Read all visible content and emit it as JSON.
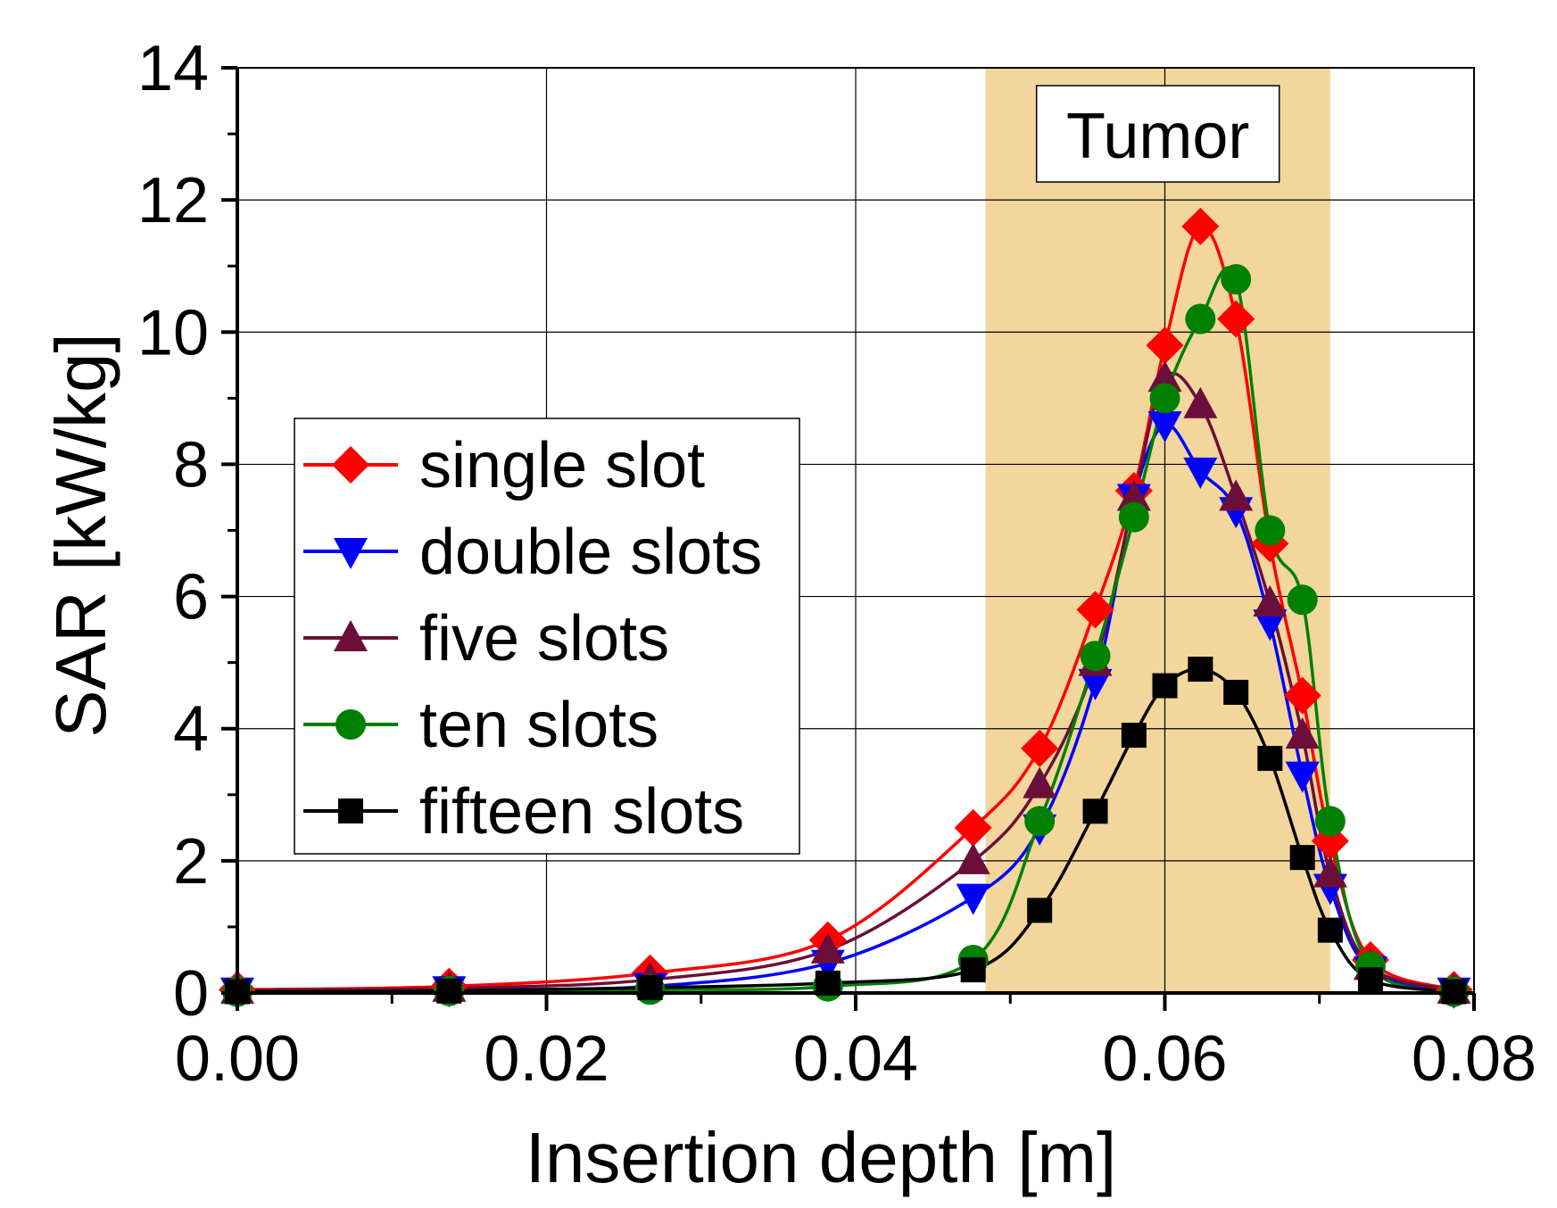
{
  "chart_data": {
    "type": "line",
    "title": "",
    "xlabel": "Insertion depth [m]",
    "ylabel": "SAR [kW/kg]",
    "xlim": [
      0,
      0.08
    ],
    "ylim": [
      0,
      14
    ],
    "xticks": [
      0.0,
      0.02,
      0.04,
      0.06,
      0.08
    ],
    "xtick_labels": [
      "0.00",
      "0.02",
      "0.04",
      "0.06",
      "0.08"
    ],
    "yticks": [
      0,
      2,
      4,
      6,
      8,
      10,
      12,
      14
    ],
    "ytick_labels": [
      "0",
      "2",
      "4",
      "6",
      "8",
      "10",
      "12",
      "14"
    ],
    "grid": true,
    "legend_position": "center-left",
    "annotation": {
      "label": "Tumor",
      "x_range": [
        0.0484,
        0.0707
      ],
      "color": "#f2d69c"
    },
    "series": [
      {
        "name": "single slot",
        "color": "#ff0000",
        "marker": "diamond",
        "x": [
          0.0,
          0.0137,
          0.0267,
          0.0382,
          0.0476,
          0.0519,
          0.0555,
          0.058,
          0.06,
          0.0623,
          0.0646,
          0.0668,
          0.0689,
          0.0707,
          0.0733,
          0.0787
        ],
        "y": [
          0.05,
          0.1,
          0.3,
          0.8,
          2.5,
          3.7,
          5.8,
          7.6,
          9.8,
          11.6,
          10.2,
          6.8,
          4.5,
          2.3,
          0.5,
          0.05
        ]
      },
      {
        "name": "double slots",
        "color": "#0000ff",
        "marker": "triangle-down",
        "x": [
          0.0,
          0.0137,
          0.0267,
          0.0382,
          0.0476,
          0.0519,
          0.0555,
          0.058,
          0.06,
          0.0623,
          0.0646,
          0.0668,
          0.0689,
          0.0707,
          0.0733,
          0.0787
        ],
        "y": [
          0.03,
          0.05,
          0.1,
          0.45,
          1.45,
          2.5,
          4.7,
          7.5,
          8.6,
          7.9,
          7.3,
          5.6,
          3.3,
          1.6,
          0.35,
          0.03
        ]
      },
      {
        "name": "five slots",
        "color": "#6b0f3a",
        "marker": "triangle-up",
        "x": [
          0.0,
          0.0137,
          0.0267,
          0.0382,
          0.0476,
          0.0519,
          0.0555,
          0.058,
          0.06,
          0.0623,
          0.0646,
          0.0668,
          0.0689,
          0.0707,
          0.0733,
          0.0787
        ],
        "y": [
          0.04,
          0.07,
          0.2,
          0.65,
          2.0,
          3.15,
          5.0,
          7.5,
          9.3,
          8.9,
          7.5,
          5.9,
          3.9,
          1.8,
          0.4,
          0.04
        ]
      },
      {
        "name": "ten slots",
        "color": "#008000",
        "marker": "circle",
        "x": [
          0.0,
          0.0137,
          0.0267,
          0.0382,
          0.0476,
          0.0519,
          0.0555,
          0.058,
          0.06,
          0.0623,
          0.0646,
          0.0668,
          0.0689,
          0.0707,
          0.0733,
          0.0787
        ],
        "y": [
          0.02,
          0.03,
          0.05,
          0.1,
          0.5,
          2.6,
          5.1,
          7.2,
          9.0,
          10.2,
          10.8,
          7.0,
          5.95,
          2.6,
          0.4,
          0.02
        ]
      },
      {
        "name": "fifteen slots",
        "color": "#000000",
        "marker": "square",
        "x": [
          0.0,
          0.0137,
          0.0267,
          0.0382,
          0.0476,
          0.0519,
          0.0555,
          0.058,
          0.06,
          0.0623,
          0.0646,
          0.0668,
          0.0689,
          0.0707,
          0.0733,
          0.0787
        ],
        "y": [
          0.02,
          0.03,
          0.08,
          0.15,
          0.35,
          1.25,
          2.75,
          3.9,
          4.65,
          4.9,
          4.55,
          3.55,
          2.05,
          0.95,
          0.2,
          0.02
        ]
      }
    ]
  }
}
